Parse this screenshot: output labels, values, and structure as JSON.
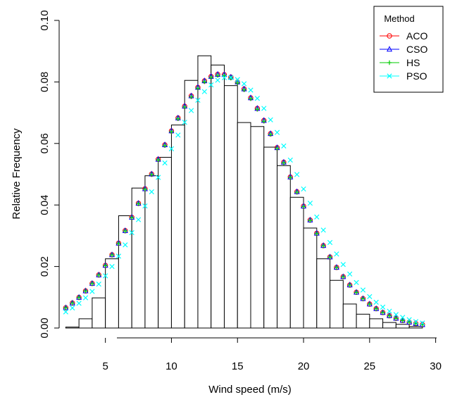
{
  "chart_data": {
    "type": "bar",
    "xlabel": "Wind speed (m/s)",
    "ylabel": "Relative Frequency",
    "xlim": [
      1.5,
      30.5
    ],
    "ylim": [
      0,
      0.1
    ],
    "xticks": [
      "5",
      "10",
      "15",
      "20",
      "25",
      "30"
    ],
    "xtick_values": [
      5,
      10,
      15,
      20,
      25,
      30
    ],
    "yticks": [
      "0.00",
      "0.02",
      "0.04",
      "0.06",
      "0.08",
      "0.10"
    ],
    "ytick_values": [
      0,
      0.02,
      0.04,
      0.06,
      0.08,
      0.1
    ],
    "histogram": {
      "bin_edges": [
        2,
        3,
        4,
        5,
        6,
        7,
        8,
        9,
        10,
        11,
        12,
        13,
        14,
        15,
        16,
        17,
        18,
        19,
        20,
        21,
        22,
        23,
        24,
        25,
        26,
        27,
        28,
        29
      ],
      "values": [
        0.0003,
        0.003,
        0.0098,
        0.0225,
        0.0365,
        0.0455,
        0.0495,
        0.0555,
        0.066,
        0.0805,
        0.0885,
        0.0855,
        0.0788,
        0.0668,
        0.0655,
        0.0588,
        0.0528,
        0.0425,
        0.0325,
        0.0225,
        0.0155,
        0.0078,
        0.0045,
        0.003,
        0.0018,
        0.0012,
        0.0005
      ]
    },
    "fit_distribution": {
      "ACO": {
        "mu": 13.7,
        "sigma": 5.2,
        "amp": 0.0825
      },
      "CSO": {
        "mu": 13.7,
        "sigma": 5.2,
        "amp": 0.0825
      },
      "HS": {
        "mu": 13.7,
        "sigma": 5.2,
        "amp": 0.0822
      },
      "PSO": {
        "mu": 14.3,
        "sigma": 5.25,
        "amp": 0.0815
      }
    },
    "series": [
      {
        "name": "ACO",
        "color": "#ff0000",
        "marker": "circle"
      },
      {
        "name": "CSO",
        "color": "#0000ff",
        "marker": "triangle"
      },
      {
        "name": "HS",
        "color": "#00cc00",
        "marker": "plus"
      },
      {
        "name": "PSO",
        "color": "#00ffff",
        "marker": "cross"
      }
    ],
    "series_x_start": 2,
    "series_x_end": 29,
    "series_x_step": 0.5,
    "legend": {
      "title": "Method",
      "position": "top-right"
    }
  }
}
